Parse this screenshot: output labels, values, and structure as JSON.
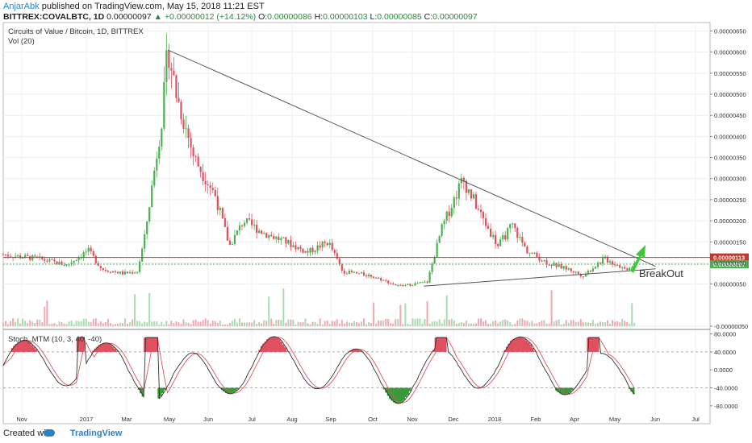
{
  "header": {
    "author": "AnjarAbk",
    "published": "published on TradingView.com, May 15, 2018 11:21 EST",
    "symbol": "BITTREX:COVALBTC, 1D",
    "price": "0.00000097",
    "change": "+0.00000012 (+14.12%)",
    "o_label": "O:",
    "o": "0.00000086",
    "h_label": "H:",
    "h": "0.00000103",
    "l_label": "L:",
    "l": "0.00000085",
    "c_label": "C:",
    "c": "0.00000097"
  },
  "footer": {
    "created": "Created with",
    "brand": "TradingView"
  },
  "chart_data": [
    {
      "type": "candlestick",
      "title": "Circuits of Value / Bitcoin, 1D, BITTREX",
      "indicator_label": "Vol (20)",
      "colors": {
        "up": "#4caf50",
        "down": "#e0505f",
        "trendline": "#555555"
      },
      "y_axis_labels": [
        "0.00000650",
        "0.00000600",
        "0.00000550",
        "0.00000500",
        "0.00000450",
        "0.00000400",
        "0.00000350",
        "0.00000300",
        "0.00000250",
        "0.00000200",
        "0.00000150",
        "0.00000100",
        "0.00000050",
        "-0.00000050"
      ],
      "ylim": [
        -5e-07,
        6.7e-06
      ],
      "x_axis_labels": [
        "Nov",
        "2017",
        "Mar",
        "May",
        "Jun",
        "Jul",
        "Aug",
        "Sep",
        "Oct",
        "Nov",
        "Dec",
        "2018",
        "Feb",
        "Apr",
        "May",
        "Jun",
        "Jul"
      ],
      "horizontal_levels": [
        {
          "value": 1.13e-06,
          "label": "0.00000113",
          "color": "#c0392b"
        },
        {
          "value": 9.7e-07,
          "label": "0.00000097",
          "color": "#4caf50"
        }
      ],
      "annotation": "BreakOut",
      "price_path": [
        [
          0,
          1.2
        ],
        [
          0.05,
          1.1
        ],
        [
          0.09,
          0.95
        ],
        [
          0.12,
          1.3
        ],
        [
          0.14,
          0.85
        ],
        [
          0.17,
          0.75
        ],
        [
          0.19,
          0.8
        ],
        [
          0.2,
          1.6
        ],
        [
          0.225,
          4.5
        ],
        [
          0.233,
          6.1
        ],
        [
          0.245,
          5.0
        ],
        [
          0.27,
          3.5
        ],
        [
          0.3,
          2.6
        ],
        [
          0.32,
          1.4
        ],
        [
          0.34,
          2.0
        ],
        [
          0.37,
          1.7
        ],
        [
          0.4,
          1.5
        ],
        [
          0.43,
          1.25
        ],
        [
          0.46,
          1.5
        ],
        [
          0.48,
          0.8
        ],
        [
          0.52,
          0.7
        ],
        [
          0.56,
          0.45
        ],
        [
          0.6,
          0.55
        ],
        [
          0.62,
          1.8
        ],
        [
          0.65,
          3.0
        ],
        [
          0.68,
          2.0
        ],
        [
          0.7,
          1.4
        ],
        [
          0.72,
          1.9
        ],
        [
          0.74,
          1.3
        ],
        [
          0.77,
          1.0
        ],
        [
          0.8,
          0.85
        ],
        [
          0.82,
          0.7
        ],
        [
          0.85,
          1.1
        ],
        [
          0.87,
          0.95
        ],
        [
          0.88,
          0.85
        ],
        [
          0.893,
          0.97
        ]
      ]
    },
    {
      "type": "line",
      "title": "Stoch_MTM (10, 3, 40, -40)",
      "y_axis_labels": [
        "80.0000",
        "40.0000",
        "0.0000",
        "-40.0000",
        "-80.0000"
      ],
      "ylim": [
        -100,
        90
      ],
      "levels": [
        40,
        -40
      ],
      "colors": {
        "line": "#333333",
        "signal": "#e0505f",
        "overbought": "#e0505f",
        "oversold": "#3a9a3a"
      }
    }
  ]
}
